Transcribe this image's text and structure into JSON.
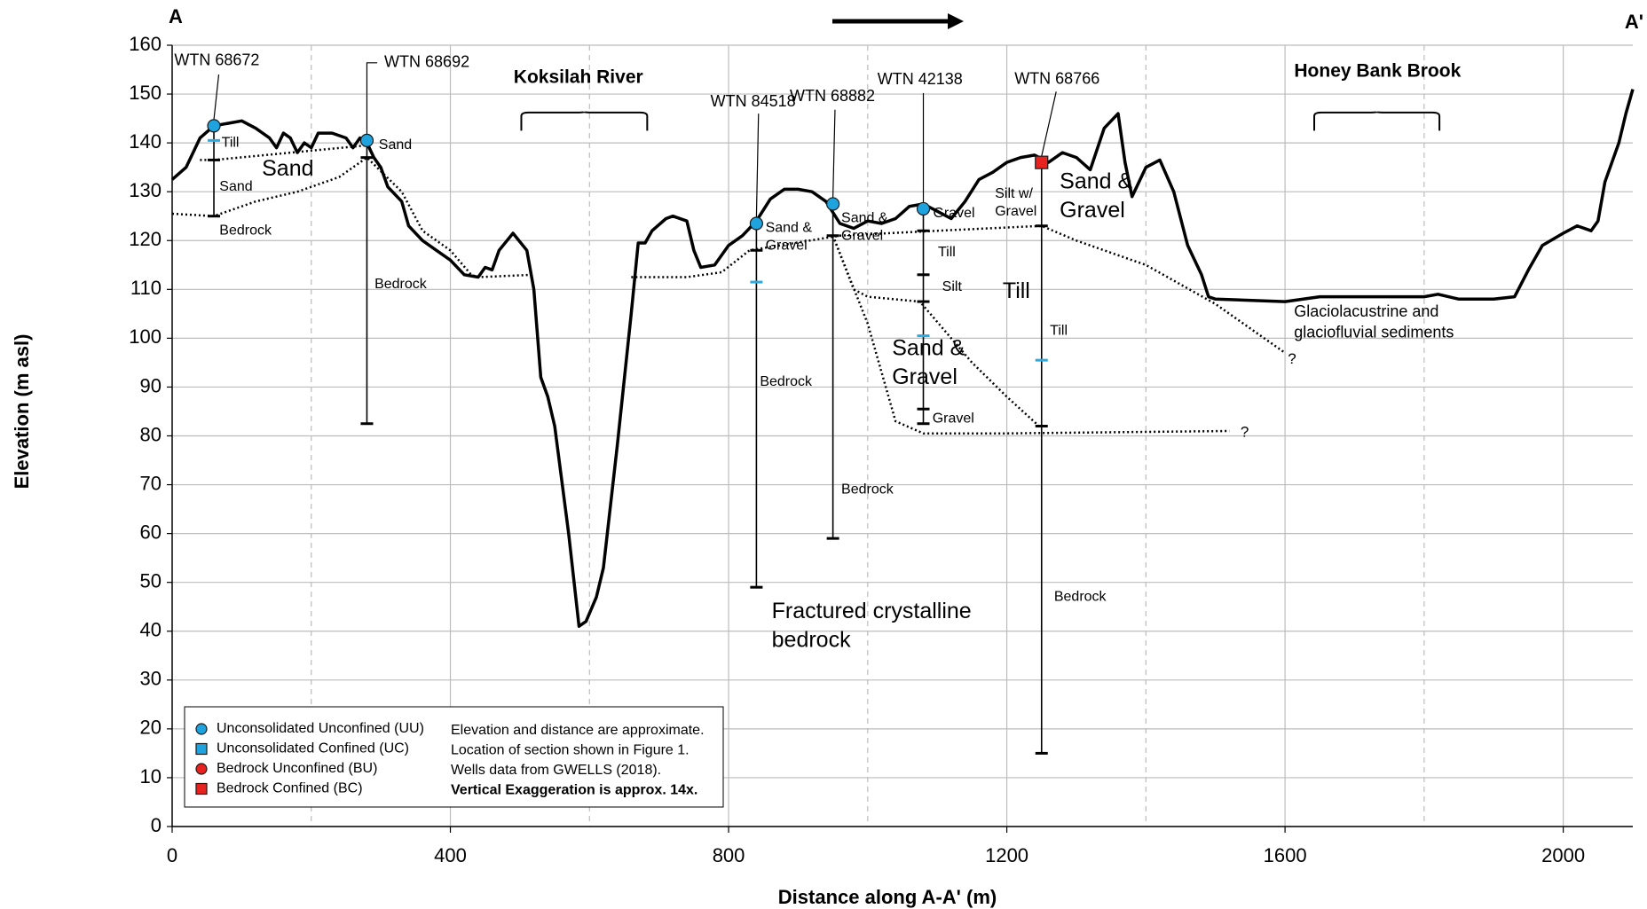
{
  "chart_data": {
    "type": "line",
    "corner_left": "A",
    "corner_right": "A'",
    "x_label": "Distance along A-A' (m)",
    "y_label": "Elevation (m asl)",
    "xlim": [
      0,
      2100
    ],
    "xticks": [
      0,
      400,
      800,
      1200,
      1600,
      2000
    ],
    "x_minor_gridlines": [
      200,
      600,
      1000,
      1400,
      1800
    ],
    "ylim": [
      0,
      160
    ],
    "yticks": [
      0,
      10,
      20,
      30,
      40,
      50,
      60,
      70,
      80,
      90,
      100,
      110,
      120,
      130,
      140,
      150,
      160
    ],
    "grid": true,
    "surface": {
      "x": [
        0,
        20,
        40,
        60,
        80,
        100,
        120,
        140,
        150,
        160,
        170,
        180,
        190,
        200,
        210,
        230,
        250,
        260,
        270,
        280,
        290,
        300,
        310,
        330,
        340,
        360,
        380,
        400,
        420,
        440,
        450,
        460,
        470,
        490,
        510,
        520,
        530,
        540,
        550,
        570,
        585,
        595,
        610,
        620,
        640,
        660,
        670,
        680,
        690,
        710,
        720,
        740,
        750,
        760,
        780,
        800,
        820,
        840,
        860,
        880,
        900,
        920,
        940,
        960,
        980,
        1000,
        1020,
        1040,
        1060,
        1080,
        1100,
        1120,
        1140,
        1160,
        1180,
        1200,
        1220,
        1240,
        1260,
        1280,
        1300,
        1320,
        1340,
        1360,
        1370,
        1380,
        1400,
        1420,
        1440,
        1460,
        1480,
        1490,
        1500,
        1600,
        1650,
        1700,
        1750,
        1800,
        1820,
        1850,
        1900,
        1930,
        1950,
        1970,
        2000,
        2020,
        2040,
        2050,
        2060,
        2080,
        2090,
        2100
      ],
      "y": [
        132.5,
        135,
        141,
        143.5,
        144,
        144.5,
        143,
        141,
        139,
        142,
        141,
        138,
        140,
        139,
        142,
        142,
        141,
        139,
        141,
        140,
        137,
        135,
        131,
        128,
        123,
        120,
        118,
        116,
        113,
        112.5,
        114.5,
        114,
        118,
        121.5,
        118,
        110,
        92,
        88,
        82,
        60,
        41,
        42,
        47,
        53,
        78,
        105,
        119.5,
        119.5,
        122,
        124.5,
        125,
        124,
        118,
        114.5,
        115,
        119,
        121,
        124,
        128.5,
        130.5,
        130.5,
        130,
        128,
        123.5,
        122.5,
        124,
        123.5,
        124.5,
        127,
        127.5,
        126,
        124.5,
        128,
        132.5,
        134,
        136,
        137,
        137.5,
        136,
        138,
        137,
        134.5,
        143,
        146,
        136,
        129,
        135,
        136.5,
        130,
        119,
        113,
        108.5,
        108,
        107.5,
        108.5,
        108.5,
        108.5,
        108.5,
        109,
        108,
        108,
        108.5,
        114,
        119,
        121.5,
        123,
        122,
        124,
        132,
        140,
        146,
        151
      ]
    },
    "contacts": [
      {
        "x": [
          40,
          60,
          280
        ],
        "y": [
          136.5,
          136.5,
          139.5
        ]
      },
      {
        "x": [
          0,
          60,
          120,
          180,
          240,
          280,
          330,
          360,
          400,
          430,
          440,
          520
        ],
        "y": [
          125.5,
          125,
          128,
          130,
          133,
          137,
          130,
          122,
          118,
          113,
          112.5,
          113
        ]
      },
      {
        "x": [
          660,
          740,
          790,
          830,
          960,
          1100,
          1250,
          1300,
          1400,
          1500,
          1600
        ],
        "y": [
          112.5,
          112.5,
          113.5,
          118,
          121,
          122,
          123,
          120,
          115,
          107,
          97
        ]
      },
      {
        "x": [
          950,
          980,
          1000,
          1075,
          1150,
          1200,
          1250
        ],
        "y": [
          121,
          110,
          108.5,
          107.5,
          95,
          88,
          81.5
        ]
      },
      {
        "x": [
          950,
          1000,
          1040,
          1080,
          1200,
          1520
        ],
        "y": [
          121,
          103,
          83,
          80.5,
          80.5,
          81
        ]
      }
    ],
    "wells": [
      {
        "name": "WTN 68672",
        "x": 60,
        "top": 143.5,
        "bottom": 125,
        "category": 0,
        "ticks": [
          136.5
        ],
        "water": [
          140.5
        ],
        "layers": [
          [
            "Till"
          ],
          [
            "Sand"
          ],
          [
            "Bedrock"
          ]
        ]
      },
      {
        "name": "WTN 68692",
        "x": 280,
        "top": 140.5,
        "bottom": 82.5,
        "category": 0,
        "ticks": [
          137
        ],
        "water": [],
        "layers": [
          [
            "Sand"
          ],
          [
            "Bedrock"
          ]
        ]
      },
      {
        "name": "WTN 84518",
        "x": 840,
        "top": 123.5,
        "bottom": 49,
        "category": 0,
        "ticks": [
          118
        ],
        "water": [
          111.5
        ],
        "layers": [
          [
            "Sand &",
            "Gravel"
          ],
          [
            "Bedrock"
          ]
        ]
      },
      {
        "name": "WTN 68882",
        "x": 950,
        "top": 127.5,
        "bottom": 59,
        "category": 0,
        "ticks": [
          121
        ],
        "water": [],
        "layers": [
          [
            "Sand &",
            "Gravel"
          ],
          [
            "Bedrock"
          ]
        ]
      },
      {
        "name": "WTN 42138",
        "x": 1080,
        "top": 126.5,
        "bottom": 82.5,
        "category": 0,
        "ticks": [
          122,
          113,
          107.5,
          85.5
        ],
        "water": [
          100.5
        ],
        "layers": [
          [
            "Gravel"
          ],
          [
            "Till"
          ],
          [
            "Silt"
          ],
          [
            "Gravel"
          ]
        ]
      },
      {
        "name": "WTN 68766",
        "x": 1250,
        "top": 136,
        "bottom": 15,
        "category": 3,
        "ticks": [
          123,
          82
        ],
        "water": [
          95.5
        ],
        "layers": [
          [
            "Silt w/",
            "Gravel"
          ],
          [
            "Till"
          ],
          [
            "Bedrock"
          ]
        ]
      }
    ],
    "unit_labels": [
      [
        "Sand"
      ],
      [
        "Sand &",
        "Gravel"
      ],
      [
        "Till"
      ],
      [
        "Sand &",
        "Gravel"
      ],
      [
        "Fractured crystalline",
        "bedrock"
      ],
      [
        "Glaciolacustrine and",
        "glaciofluvial sediments"
      ]
    ],
    "features": [
      "Koksilah River",
      "Honey Bank Brook"
    ],
    "uncertain": [
      "?",
      "?"
    ],
    "water_color": "#29abe2",
    "legend": [
      {
        "name": "Unconsolidated Unconfined (UU)",
        "color": "#1fa3df",
        "marker": "circle"
      },
      {
        "name": "Unconsolidated Confined (UC)",
        "color": "#1fa3df",
        "marker": "square"
      },
      {
        "name": "Bedrock Unconfined (BU)",
        "color": "#e8231f",
        "marker": "circle"
      },
      {
        "name": "Bedrock Confined (BC)",
        "color": "#e8231f",
        "marker": "square"
      }
    ],
    "notes": [
      "Elevation and distance are approximate.",
      "Location of section shown in Figure 1.",
      "Wells data from GWELLS (2018).",
      "Vertical Exaggeration is approx. 14x."
    ]
  }
}
